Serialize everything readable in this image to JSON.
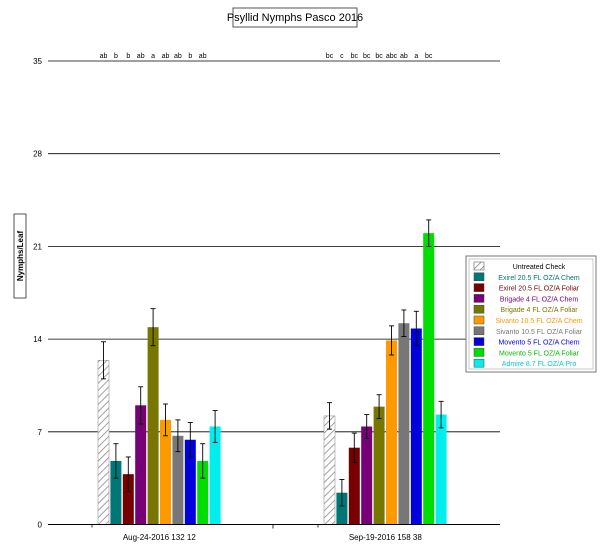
{
  "chart_data": {
    "type": "bar",
    "title": "Psyllid Nymphs Pasco 2016",
    "ylabel": "Nymphs/Leaf",
    "xlabel": "",
    "ylim": [
      0,
      35
    ],
    "yticks": [
      "0",
      "7",
      "14",
      "21",
      "28",
      "35"
    ],
    "grid": true,
    "legend_position": "right",
    "categories": [
      "Aug-24-2016 132 12",
      "Sep-19-2016 158 38"
    ],
    "series": [
      {
        "name": "Untreated Check",
        "color": "#bbbbbb",
        "hatched": true,
        "text_color": "#000000",
        "values": [
          12.4,
          8.2
        ],
        "errors": [
          1.4,
          1.0
        ],
        "letters": [
          "ab",
          "bc"
        ]
      },
      {
        "name": "Exirel 20.5 FL OZ/A Chem",
        "color": "#007777",
        "text_color": "#007777",
        "values": [
          4.8,
          2.4
        ],
        "errors": [
          1.3,
          1.0
        ],
        "letters": [
          "b",
          "c"
        ]
      },
      {
        "name": "Exirel 20.5 FL OZ/A Foliar",
        "color": "#770000",
        "text_color": "#770000",
        "values": [
          3.8,
          5.8
        ],
        "errors": [
          1.3,
          1.1
        ],
        "letters": [
          "b",
          "bc"
        ]
      },
      {
        "name": "Brigade 4 FL OZ/A Chem",
        "color": "#770077",
        "text_color": "#770077",
        "values": [
          9.0,
          7.4
        ],
        "errors": [
          1.4,
          0.9
        ],
        "letters": [
          "ab",
          "bc"
        ]
      },
      {
        "name": "Brigade 4 FL OZ/A Foliar",
        "color": "#777700",
        "text_color": "#777700",
        "values": [
          14.9,
          8.9
        ],
        "errors": [
          1.4,
          0.9
        ],
        "letters": [
          "a",
          "bc"
        ]
      },
      {
        "name": "Sivanto 10.5 FL OZ/A Chem",
        "color": "#ff9900",
        "text_color": "#ff9900",
        "values": [
          7.9,
          13.9
        ],
        "errors": [
          1.2,
          1.1
        ],
        "letters": [
          "ab",
          "abc"
        ]
      },
      {
        "name": "Sivanto 10.5 FL OZ/A Foliar",
        "color": "#777777",
        "text_color": "#777777",
        "values": [
          6.7,
          15.2
        ],
        "errors": [
          1.2,
          1.0
        ],
        "letters": [
          "ab",
          "ab"
        ]
      },
      {
        "name": "Movento 5 FL OZ/A Chem",
        "color": "#0000dd",
        "text_color": "#0000dd",
        "values": [
          6.4,
          14.8
        ],
        "errors": [
          1.3,
          1.3
        ],
        "letters": [
          "b",
          "a"
        ]
      },
      {
        "name": "Movento 5 FL OZ/A Foliar",
        "color": "#00dd00",
        "text_color": "#00bb00",
        "values": [
          4.8,
          22.0
        ],
        "errors": [
          1.3,
          1.0
        ],
        "letters": [
          "ab",
          "bc"
        ]
      },
      {
        "name": "Admire 8.7 FL OZ/A Pro",
        "color": "#00eeee",
        "text_color": "#00cccc",
        "values": [
          7.4,
          8.3
        ],
        "errors": [
          1.2,
          1.0
        ],
        "letters": [
          "",
          ""
        ]
      }
    ]
  }
}
